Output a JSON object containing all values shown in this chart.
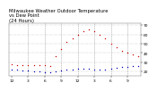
{
  "title": "Milwaukee Weather Outdoor Temperature\nvs Dew Point\n(24 Hours)",
  "bg_color": "#ffffff",
  "plot_bg": "#ffffff",
  "grid_color": "#888888",
  "temp_color": "#cc0000",
  "dew_color": "#0000bb",
  "hours": [
    0,
    1,
    2,
    3,
    4,
    5,
    6,
    7,
    8,
    9,
    10,
    11,
    12,
    13,
    14,
    15,
    16,
    17,
    18,
    19,
    20,
    21,
    22,
    23
  ],
  "temp": [
    28,
    27,
    27,
    27,
    27,
    27,
    27,
    26,
    36,
    44,
    52,
    56,
    60,
    63,
    65,
    63,
    60,
    56,
    50,
    46,
    42,
    40,
    38,
    36
  ],
  "dew": [
    22,
    22,
    21,
    21,
    20,
    20,
    19,
    19,
    20,
    21,
    22,
    22,
    23,
    23,
    23,
    22,
    22,
    22,
    23,
    24,
    25,
    25,
    26,
    26
  ],
  "ylim": [
    15,
    72
  ],
  "yticks": [
    20,
    30,
    40,
    50,
    60,
    70
  ],
  "ytick_labels": [
    "20",
    "30",
    "40",
    "50",
    "60",
    "70"
  ],
  "xtick_major": [
    0,
    3,
    6,
    9,
    12,
    15,
    18,
    21
  ],
  "xlabel_labels": [
    "12",
    "3",
    "6",
    "9",
    "12",
    "3",
    "6",
    "9"
  ],
  "vlines": [
    3,
    6,
    9,
    12,
    15,
    18,
    21
  ],
  "marker_size": 1.0,
  "title_fontsize": 3.8,
  "tick_fontsize": 3.2,
  "linewidth_spine": 0.3
}
